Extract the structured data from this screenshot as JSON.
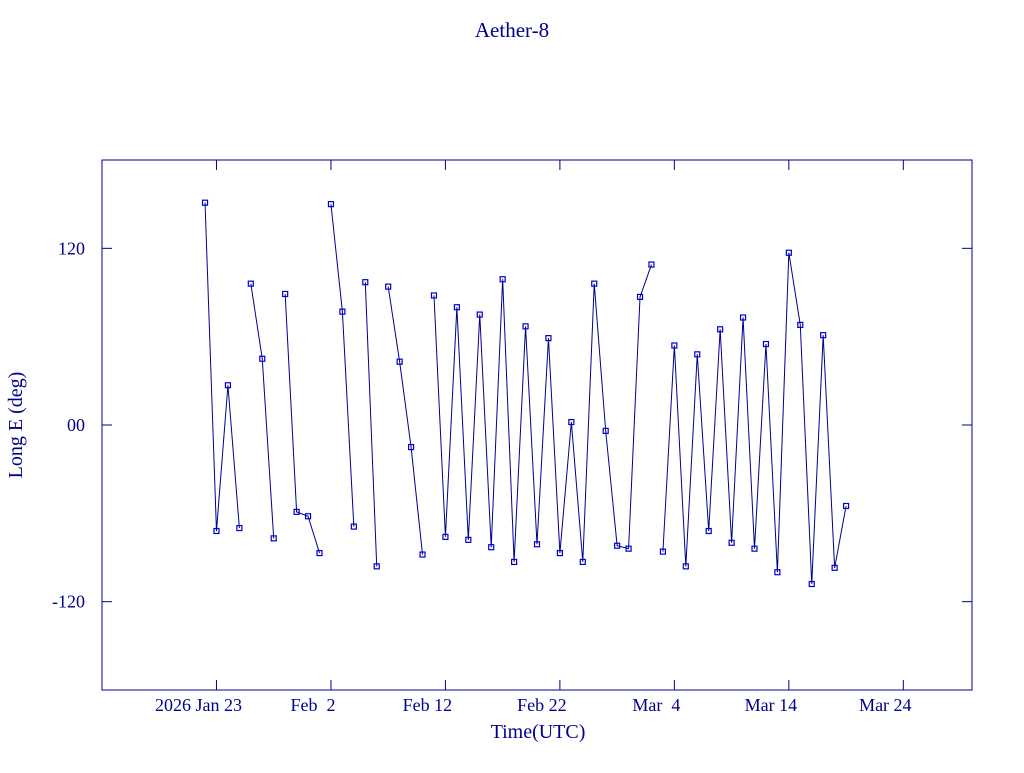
{
  "chart_data": {
    "type": "line",
    "title": "Aether-8",
    "x_label": "Time(UTC)",
    "y_label": "Long E (deg)",
    "color": "#00008b",
    "marker_color": "#0000cc",
    "xlim": [
      "2026-01-13",
      "2026-03-30"
    ],
    "xticks": [
      {
        "value": "2026-01-23",
        "label": "2026 Jan 23"
      },
      {
        "value": "2026-02-02",
        "label": "Feb  2"
      },
      {
        "value": "2026-02-12",
        "label": "Feb 12"
      },
      {
        "value": "2026-02-22",
        "label": "Feb 22"
      },
      {
        "value": "2026-03-04",
        "label": "Mar  4"
      },
      {
        "value": "2026-03-14",
        "label": "Mar 14"
      },
      {
        "value": "2026-03-24",
        "label": "Mar 24"
      }
    ],
    "ylim": [
      -180,
      180
    ],
    "yticks": [
      -120,
      {
        "value": 0,
        "label": "00"
      },
      120
    ],
    "x": [
      "2026-01-22",
      "2026-01-23",
      "2026-01-24",
      "2026-01-25",
      null,
      "2026-01-26",
      "2026-01-27",
      "2026-01-28",
      null,
      "2026-01-29",
      "2026-01-30",
      "2026-01-31",
      "2026-02-01",
      null,
      "2026-02-02",
      "2026-02-03",
      "2026-02-04",
      null,
      "2026-02-05",
      "2026-02-06",
      null,
      "2026-02-07",
      "2026-02-08",
      "2026-02-09",
      "2026-02-10",
      null,
      "2026-02-11",
      "2026-02-12",
      "2026-02-13",
      "2026-02-14",
      "2026-02-15",
      "2026-02-16",
      "2026-02-17",
      "2026-02-18",
      "2026-02-19",
      "2026-02-20",
      "2026-02-21",
      "2026-02-22",
      "2026-02-23",
      "2026-02-24",
      "2026-02-25",
      "2026-02-26",
      "2026-02-27",
      "2026-02-28",
      "2026-03-01",
      "2026-03-02",
      null,
      "2026-03-03",
      "2026-03-04",
      "2026-03-05",
      "2026-03-06",
      "2026-03-07",
      "2026-03-08",
      "2026-03-09",
      "2026-03-10",
      "2026-03-11",
      "2026-03-12",
      "2026-03-13",
      "2026-03-14",
      "2026-03-15",
      "2026-03-16",
      "2026-03-17",
      "2026-03-18",
      "2026-03-19"
    ],
    "values": [
      151,
      -72,
      27,
      -70,
      null,
      96,
      45,
      -77,
      null,
      89,
      -59,
      -62,
      -87,
      null,
      150,
      77,
      -69,
      null,
      97,
      -96,
      null,
      94,
      43,
      -15,
      -88,
      null,
      88,
      -76,
      80,
      -78,
      75,
      -83,
      99,
      -93,
      67,
      -81,
      59,
      -87,
      2,
      -93,
      96,
      -4,
      -82,
      -84,
      87,
      109,
      null,
      -86,
      54,
      -96,
      48,
      -72,
      65,
      -80,
      73,
      -84,
      55,
      -100,
      117,
      68,
      -108,
      61,
      -97,
      -55
    ]
  }
}
